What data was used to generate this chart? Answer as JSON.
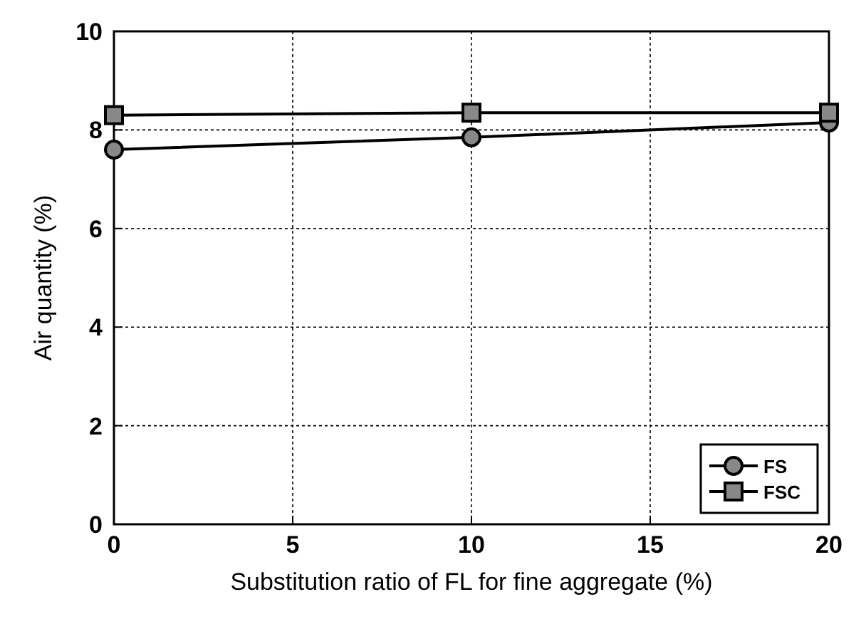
{
  "chart_data": {
    "type": "line",
    "xlabel": "Substitution ratio of FL for fine aggregate (%)",
    "ylabel": "Air quantity (%)",
    "x": [
      0,
      10,
      20
    ],
    "series": [
      {
        "name": "FS",
        "color": "#000000",
        "values": [
          7.6,
          7.85,
          8.15
        ],
        "marker": "circle"
      },
      {
        "name": "FSC",
        "color": "#000000",
        "values": [
          8.3,
          8.35,
          8.35
        ],
        "marker": "square"
      }
    ],
    "xlim": [
      0,
      20
    ],
    "xticks": [
      0,
      5,
      10,
      15,
      20
    ],
    "ylim": [
      0,
      10
    ],
    "yticks": [
      0,
      2,
      4,
      6,
      8,
      10
    ],
    "grid": true,
    "legend": "bottom right",
    "line_style": "solid"
  }
}
